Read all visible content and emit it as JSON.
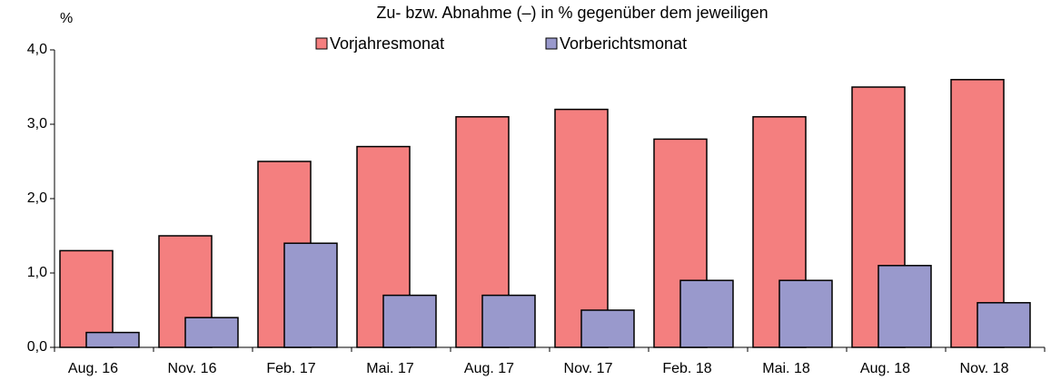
{
  "chart_data": {
    "type": "bar",
    "title": "Zu- bzw. Abnahme (–) in %  gegenüber dem jeweiligen",
    "y_label": "%",
    "categories": [
      "Aug. 16",
      "Nov. 16",
      "Feb. 17",
      "Mai. 17",
      "Aug. 17",
      "Nov. 17",
      "Feb. 18",
      "Mai. 18",
      "Aug. 18",
      "Nov. 18"
    ],
    "series": [
      {
        "name": "Vorjahresmonat",
        "color": "#f47f7f",
        "values": [
          1.3,
          1.5,
          2.5,
          2.7,
          3.1,
          3.2,
          2.8,
          3.1,
          3.5,
          3.6
        ]
      },
      {
        "name": "Vorberichtsmonat",
        "color": "#9999cc",
        "values": [
          0.2,
          0.4,
          1.4,
          0.7,
          0.7,
          0.5,
          0.9,
          0.9,
          1.1,
          0.6
        ]
      }
    ],
    "ylim": [
      0,
      4
    ],
    "yticks": [
      {
        "value": 0,
        "label": "0,0"
      },
      {
        "value": 1,
        "label": "1,0"
      },
      {
        "value": 2,
        "label": "2,0"
      },
      {
        "value": 3,
        "label": "3,0"
      },
      {
        "value": 4,
        "label": "4,0"
      }
    ],
    "grid": false
  }
}
